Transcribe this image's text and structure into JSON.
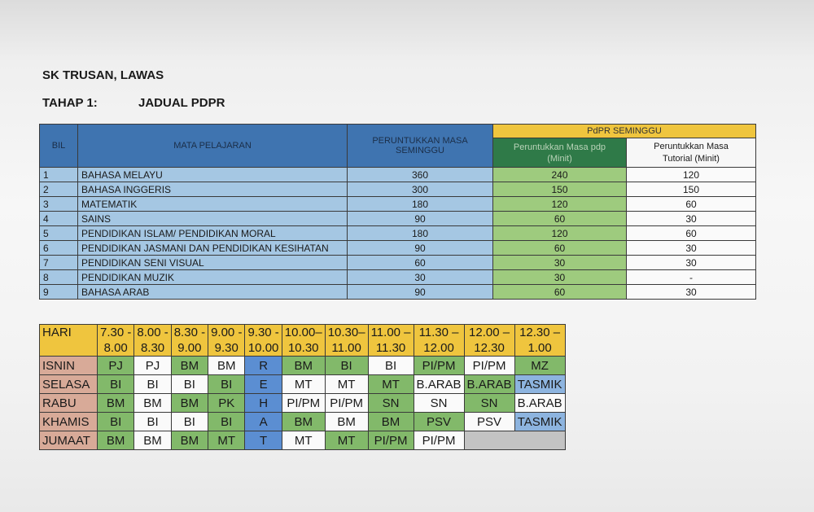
{
  "header": {
    "school": "SK TRUSAN, LAWAS",
    "tahap": "TAHAP 1:",
    "title": "JADUAL PDPR"
  },
  "allocation": {
    "headers": {
      "bil": "BIL",
      "subject": "MATA PELAJARAN",
      "weekly_line1": "PERUNTUKKAN MASA",
      "weekly_line2": "SEMINGGU",
      "pdpr": "PdPR SEMINGGU",
      "pdp_line1": "Peruntukkan Masa pdp",
      "pdp_line2": "(Minit)",
      "tutorial_line1": "Peruntukkan Masa",
      "tutorial_line2": "Tutorial (Minit)"
    },
    "rows": [
      {
        "no": "1",
        "subject": "BAHASA MELAYU",
        "weekly": "360",
        "pdp": "240",
        "tutorial": "120"
      },
      {
        "no": "2",
        "subject": "BAHASA INGGERIS",
        "weekly": "300",
        "pdp": "150",
        "tutorial": "150"
      },
      {
        "no": "3",
        "subject": "MATEMATIK",
        "weekly": "180",
        "pdp": "120",
        "tutorial": "60"
      },
      {
        "no": "4",
        "subject": "SAINS",
        "weekly": "90",
        "pdp": "60",
        "tutorial": "30"
      },
      {
        "no": "5",
        "subject": "PENDIDIKAN ISLAM/ PENDIDIKAN MORAL",
        "weekly": "180",
        "pdp": "120",
        "tutorial": "60"
      },
      {
        "no": "6",
        "subject": "PENDIDIKAN JASMANI DAN PENDIDIKAN KESIHATAN",
        "weekly": "90",
        "pdp": "60",
        "tutorial": "30"
      },
      {
        "no": "7",
        "subject": "PENDIDIKAN SENI VISUAL",
        "weekly": "60",
        "pdp": "30",
        "tutorial": "30"
      },
      {
        "no": "8",
        "subject": "PENDIDIKAN MUZIK",
        "weekly": "30",
        "pdp": "30",
        "tutorial": "-"
      },
      {
        "no": "9",
        "subject": "BAHASA ARAB",
        "weekly": "90",
        "pdp": "60",
        "tutorial": "30"
      }
    ]
  },
  "timetable": {
    "hari": "HARI",
    "times": [
      {
        "a": "7.30 -",
        "b": "8.00"
      },
      {
        "a": "8.00 -",
        "b": "8.30"
      },
      {
        "a": "8.30 -",
        "b": "9.00"
      },
      {
        "a": "9.00 -",
        "b": "9.30"
      },
      {
        "a": "9.30 -",
        "b": "10.00"
      },
      {
        "a": "10.00–",
        "b": "10.30"
      },
      {
        "a": "10.30–",
        "b": "11.00"
      },
      {
        "a": "11.00 –",
        "b": "11.30"
      },
      {
        "a": "11.30 –",
        "b": "12.00"
      },
      {
        "a": "12.00 –",
        "b": "12.30"
      },
      {
        "a": "12.30 –",
        "b": "1.00"
      }
    ],
    "days": [
      {
        "name": "ISNIN",
        "slots": [
          "PJ",
          "PJ",
          "BM",
          "BM",
          "R",
          "BM",
          "BI",
          "BI",
          "PI/PM",
          "PI/PM",
          "MZ"
        ]
      },
      {
        "name": "SELASA",
        "slots": [
          "BI",
          "BI",
          "BI",
          "BI",
          "E",
          "MT",
          "MT",
          "MT",
          "B.ARAB",
          "B.ARAB",
          "TASMIK"
        ]
      },
      {
        "name": "RABU",
        "slots": [
          "BM",
          "BM",
          "BM",
          "PK",
          "H",
          "PI/PM",
          "PI/PM",
          "SN",
          "SN",
          "SN",
          "B.ARAB"
        ]
      },
      {
        "name": "KHAMIS",
        "slots": [
          "BI",
          "BI",
          "BI",
          "BI",
          "A",
          "BM",
          "BM",
          "BM",
          "PSV",
          "PSV",
          "TASMIK"
        ]
      },
      {
        "name": "JUMAAT",
        "slots": [
          "BM",
          "BM",
          "BM",
          "MT",
          "T",
          "MT",
          "MT",
          "PI/PM",
          "PI/PM",
          "",
          ""
        ]
      }
    ],
    "colors": {
      "green": "#82b96a",
      "white": "#fafafa",
      "light_blue": "#8db4df",
      "rehat_blue": "#5b8ed2",
      "grey": "#c3c3c3",
      "header_yellow": "#efc53e",
      "day_salmon": "#d8aa98"
    }
  }
}
